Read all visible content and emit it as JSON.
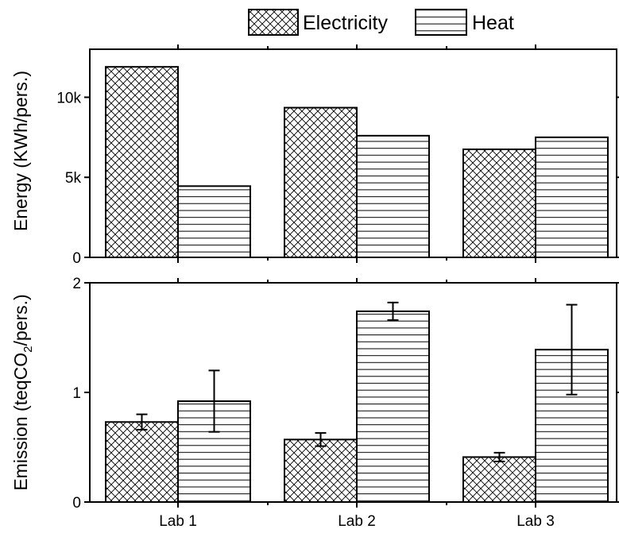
{
  "chart_data": [
    {
      "type": "bar",
      "categories": [
        "Lab 1",
        "Lab 2",
        "Lab 3"
      ],
      "ylabel": "Energy (KWh/pers.)",
      "ylim": [
        0,
        13000
      ],
      "yticks": [
        0,
        5000,
        10000
      ],
      "ytick_labels": [
        "0",
        "5k",
        "10k"
      ],
      "series": [
        {
          "name": "Electricity",
          "pattern": "crosshatch",
          "values": [
            11900,
            9350,
            6750
          ]
        },
        {
          "name": "Heat",
          "pattern": "horizontal",
          "values": [
            4450,
            7600,
            7500
          ]
        }
      ]
    },
    {
      "type": "bar",
      "categories": [
        "Lab 1",
        "Lab 2",
        "Lab 3"
      ],
      "ylabel": "Emission (teqCO2/pers.)",
      "ylabel_parts": [
        "Emission (teqCO",
        "2",
        "/pers.)"
      ],
      "ylim": [
        0,
        2
      ],
      "yticks": [
        0,
        1,
        2
      ],
      "ytick_labels": [
        "0",
        "1",
        "2"
      ],
      "series": [
        {
          "name": "Electricity",
          "pattern": "crosshatch",
          "values": [
            0.73,
            0.57,
            0.41
          ],
          "errors": [
            0.07,
            0.06,
            0.04
          ]
        },
        {
          "name": "Heat",
          "pattern": "horizontal",
          "values": [
            0.92,
            1.74,
            1.39
          ],
          "errors": [
            0.28,
            0.08,
            0.41
          ]
        }
      ]
    }
  ],
  "legend": {
    "placement": "top-center",
    "items": [
      {
        "label": "Electricity",
        "pattern": "crosshatch"
      },
      {
        "label": "Heat",
        "pattern": "horizontal"
      }
    ]
  },
  "colors": {
    "stroke": "#000000",
    "background": "#ffffff"
  }
}
